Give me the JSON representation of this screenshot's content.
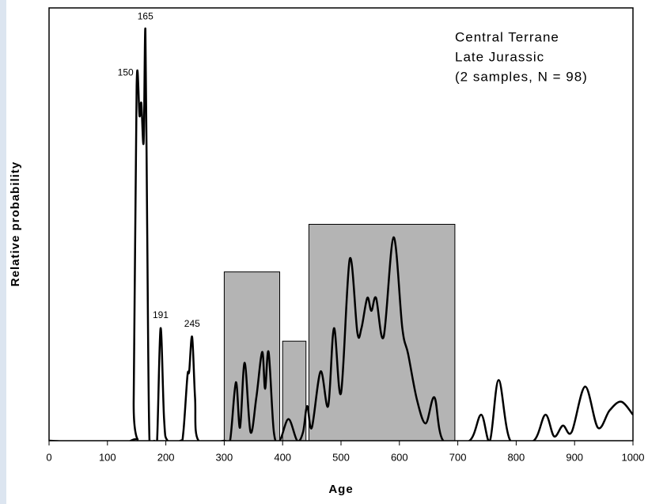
{
  "chart_data": {
    "type": "line",
    "xlabel": "Age",
    "ylabel": "Relative probability",
    "annotation": [
      "Central Terrane",
      "Late Jurassic",
      "(2 samples, N = 98)"
    ],
    "peak_labels": [
      150,
      165,
      191,
      245
    ],
    "xlim": [
      0,
      1000
    ],
    "xticks": [
      0,
      100,
      200,
      300,
      400,
      500,
      600,
      700,
      800,
      900,
      1000
    ],
    "ylim": [
      0,
      1
    ],
    "bars": [
      {
        "x0": 300,
        "x1": 395,
        "value": 0.39
      },
      {
        "x0": 400,
        "x1": 440,
        "value": 0.23
      },
      {
        "x0": 445,
        "x1": 695,
        "value": 0.5
      }
    ],
    "bar_color": "#b4b4b4",
    "series": [
      {
        "color": "#000000",
        "x": [
          0,
          140,
          145,
          150,
          155,
          158,
          162,
          165,
          168,
          172,
          180,
          185,
          191,
          197,
          203,
          225,
          230,
          237,
          240,
          245,
          250,
          256,
          300,
          310,
          320,
          327,
          335,
          345,
          355,
          365,
          370,
          376,
          385,
          395,
          410,
          425,
          435,
          442,
          450,
          465,
          478,
          488,
          500,
          515,
          528,
          535,
          545,
          552,
          560,
          573,
          590,
          605,
          615,
          630,
          645,
          660,
          675,
          720,
          740,
          755,
          770,
          790,
          830,
          850,
          865,
          880,
          895,
          918,
          940,
          960,
          980,
          1000
        ],
        "values": [
          0,
          0,
          0.1,
          0.82,
          0.75,
          0.78,
          0.69,
          0.95,
          0.5,
          0,
          0,
          0,
          0.26,
          0.05,
          0,
          0,
          0.02,
          0.15,
          0.16,
          0.24,
          0.1,
          0,
          0,
          0,
          0.135,
          0.03,
          0.18,
          0.02,
          0.1,
          0.205,
          0.12,
          0.205,
          0.02,
          0,
          0.05,
          0,
          0.02,
          0.08,
          0.03,
          0.16,
          0.08,
          0.26,
          0.11,
          0.42,
          0.25,
          0.26,
          0.33,
          0.3,
          0.33,
          0.24,
          0.47,
          0.26,
          0.2,
          0.095,
          0.04,
          0.1,
          0,
          0,
          0.06,
          0,
          0.14,
          0,
          0,
          0.06,
          0.01,
          0.035,
          0.02,
          0.125,
          0.03,
          0.07,
          0.09,
          0.06
        ]
      }
    ]
  }
}
